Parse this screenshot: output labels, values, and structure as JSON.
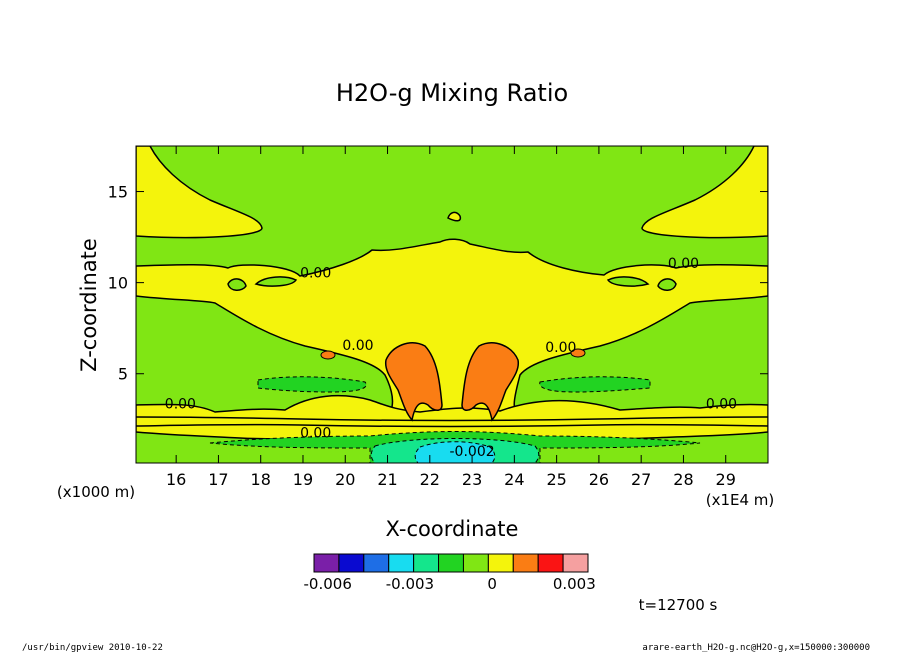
{
  "chart_data": {
    "type": "heatmap",
    "title": "H2O-g Mixing Ratio",
    "xlabel": "X-coordinate",
    "ylabel": "Z-coordinate",
    "x_unit": "(x1E4 m)",
    "y_unit": "(x1000 m)",
    "x_range": [
      15.05,
      30.0
    ],
    "y_range": [
      0.1,
      17.5
    ],
    "x_ticks": [
      16,
      17,
      18,
      19,
      20,
      21,
      22,
      23,
      24,
      25,
      26,
      27,
      28,
      29
    ],
    "y_ticks": [
      5,
      10,
      15
    ],
    "grid": false,
    "contour_labels": [
      {
        "text": "0.00",
        "x": 19.3,
        "y": 10.4
      },
      {
        "text": "0.00",
        "x": 28.0,
        "y": 10.9
      },
      {
        "text": "0.00",
        "x": 20.3,
        "y": 6.4
      },
      {
        "text": "0.00",
        "x": 25.1,
        "y": 6.3
      },
      {
        "text": "0.00",
        "x": 16.1,
        "y": 3.2
      },
      {
        "text": "0.00",
        "x": 28.9,
        "y": 3.2
      },
      {
        "text": "0.00",
        "x": 19.3,
        "y": 1.6
      },
      {
        "text": "-0.002",
        "x": 23.0,
        "y": 0.6
      }
    ],
    "colorbar": {
      "colors": [
        "#7a1fa8",
        "#0a0ad0",
        "#1e6ee6",
        "#18dcf0",
        "#14e68c",
        "#22d322",
        "#80e614",
        "#f4f40c",
        "#fa7d14",
        "#fa1414",
        "#f5a0a0"
      ],
      "tick_labels": [
        "-0.006",
        "-0.003",
        "0",
        "0.003"
      ],
      "tick_values": [
        -0.006,
        -0.003,
        0,
        0.003
      ],
      "range": [
        -0.006,
        0.003
      ]
    },
    "regions": [
      {
        "name": "upper-left yellow",
        "value_range": [
          0,
          0.001
        ]
      },
      {
        "name": "central yellow band",
        "value_range": [
          0,
          0.001
        ]
      },
      {
        "name": "left orange plume",
        "value_range": [
          0.001,
          0.002
        ]
      },
      {
        "name": "right orange plume",
        "value_range": [
          0.001,
          0.002
        ]
      },
      {
        "name": "low-level green bands",
        "value_range": [
          -0.001,
          0
        ]
      },
      {
        "name": "near-surface cyan core",
        "value_range": [
          -0.003,
          -0.002
        ]
      }
    ]
  },
  "time_label": "t=12700 s",
  "footer": {
    "left": "/usr/bin/gpview   2010-10-22",
    "right": "arare-earth_H2O-g.nc@H2O-g,x=150000:300000"
  }
}
